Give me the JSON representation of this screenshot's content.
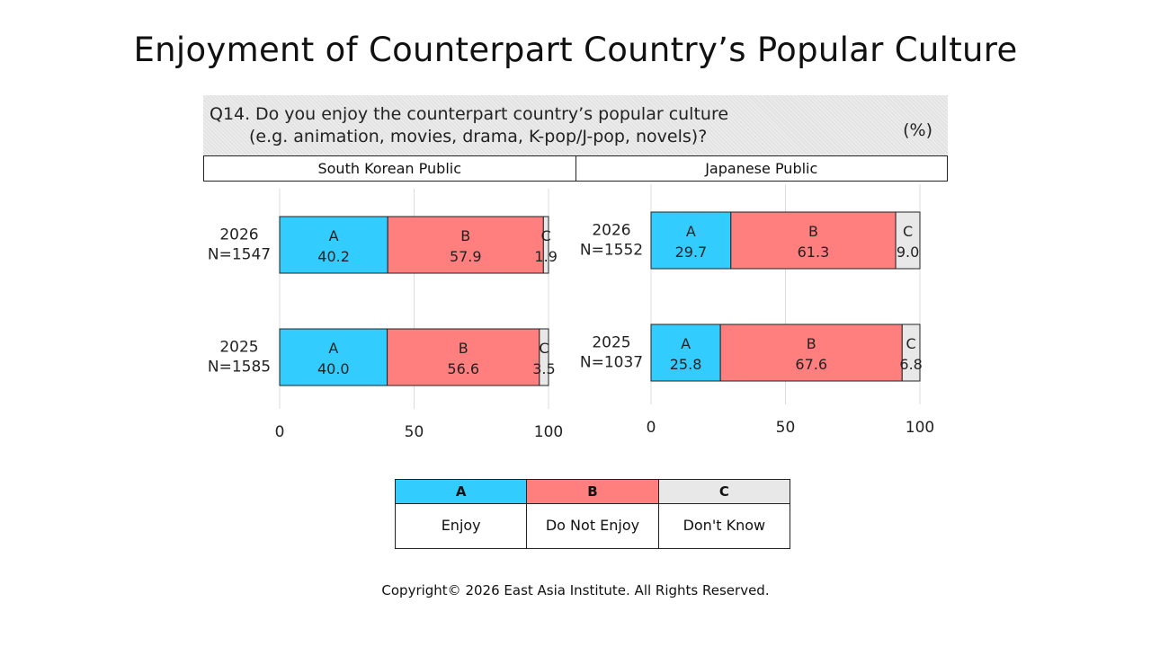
{
  "title": "Enjoyment of Counterpart Country’s Popular Culture",
  "question": {
    "number": "Q14.",
    "line1": "Do you enjoy the counterpart country’s popular culture",
    "line2": "(e.g. animation, movies, drama, K-pop/J-pop, novels)?",
    "unit": "(%)"
  },
  "colors": {
    "A": "#33ccff",
    "B": "#ff7f7f",
    "C": "#e8e8e8"
  },
  "chart_data": [
    {
      "type": "bar",
      "orientation": "horizontal",
      "stacked": true,
      "title": "South Korean Public",
      "categories": [
        "2026\nN=1547",
        "2025\nN=1585"
      ],
      "series": [
        {
          "name": "A",
          "values": [
            40.2,
            40.0
          ]
        },
        {
          "name": "B",
          "values": [
            57.9,
            56.6
          ]
        },
        {
          "name": "C",
          "values": [
            1.9,
            3.5
          ]
        }
      ],
      "xlim": [
        0,
        100
      ],
      "xticks": [
        0,
        50,
        100
      ],
      "grid": true
    },
    {
      "type": "bar",
      "orientation": "horizontal",
      "stacked": true,
      "title": "Japanese Public",
      "categories": [
        "2026\nN=1552",
        "2025\nN=1037"
      ],
      "series": [
        {
          "name": "A",
          "values": [
            29.7,
            25.8
          ]
        },
        {
          "name": "B",
          "values": [
            61.3,
            67.6
          ]
        },
        {
          "name": "C",
          "values": [
            9.0,
            6.8
          ]
        }
      ],
      "xlim": [
        0,
        100
      ],
      "xticks": [
        0,
        50,
        100
      ],
      "grid": true
    }
  ],
  "legend": [
    {
      "key": "A",
      "label": "Enjoy"
    },
    {
      "key": "B",
      "label": "Do Not Enjoy"
    },
    {
      "key": "C",
      "label": "Don't Know"
    }
  ],
  "copyright": "Copyright© 2026 East Asia Institute. All Rights Reserved."
}
